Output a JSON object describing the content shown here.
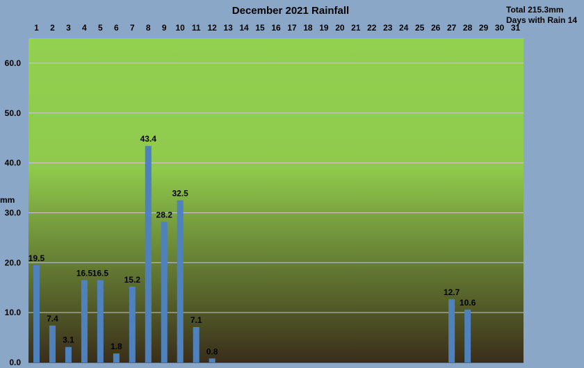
{
  "chart_data": {
    "type": "bar",
    "title": "December 2021 Rainfall",
    "summary": {
      "total": "Total 215.3mm",
      "days_with_rain": "Days with Rain 14"
    },
    "ylabel": "mm",
    "xlabel": "",
    "ylim": [
      0,
      65
    ],
    "yticks": [
      0,
      10,
      20,
      30,
      40,
      50,
      60
    ],
    "ytick_labels": [
      "0.0",
      "10.0",
      "20.0",
      "30.0",
      "40.0",
      "50.0",
      "60.0"
    ],
    "x_axis_position": "top",
    "grid": true,
    "categories": [
      "1",
      "2",
      "3",
      "4",
      "5",
      "6",
      "7",
      "8",
      "9",
      "10",
      "11",
      "12",
      "13",
      "14",
      "15",
      "16",
      "17",
      "18",
      "19",
      "20",
      "21",
      "22",
      "23",
      "24",
      "25",
      "26",
      "27",
      "28",
      "29",
      "30",
      "31"
    ],
    "values": [
      19.5,
      7.4,
      3.1,
      16.5,
      16.5,
      1.8,
      15.2,
      43.4,
      28.2,
      32.5,
      7.1,
      0.8,
      0,
      0,
      0,
      0,
      0,
      0,
      0,
      0,
      0,
      0,
      0,
      0,
      0,
      0,
      12.7,
      10.6,
      0,
      0,
      0
    ],
    "data_labels": [
      "19.5",
      "7.4",
      "3.1",
      "16.5",
      "16.5",
      "1.8",
      "15.2",
      "43.4",
      "28.2",
      "32.5",
      "7.1",
      "0.8",
      "",
      "",
      "",
      "",
      "",
      "",
      "",
      "",
      "",
      "",
      "",
      "",
      "",
      "",
      "12.7",
      "10.6",
      "",
      "",
      ""
    ],
    "colors": {
      "background": "#8aa7c8",
      "plot_top": "#92d050",
      "plot_bottom": "#3a2e1a",
      "bar": "#4f81bd",
      "grid": "#c8c8c8"
    }
  }
}
